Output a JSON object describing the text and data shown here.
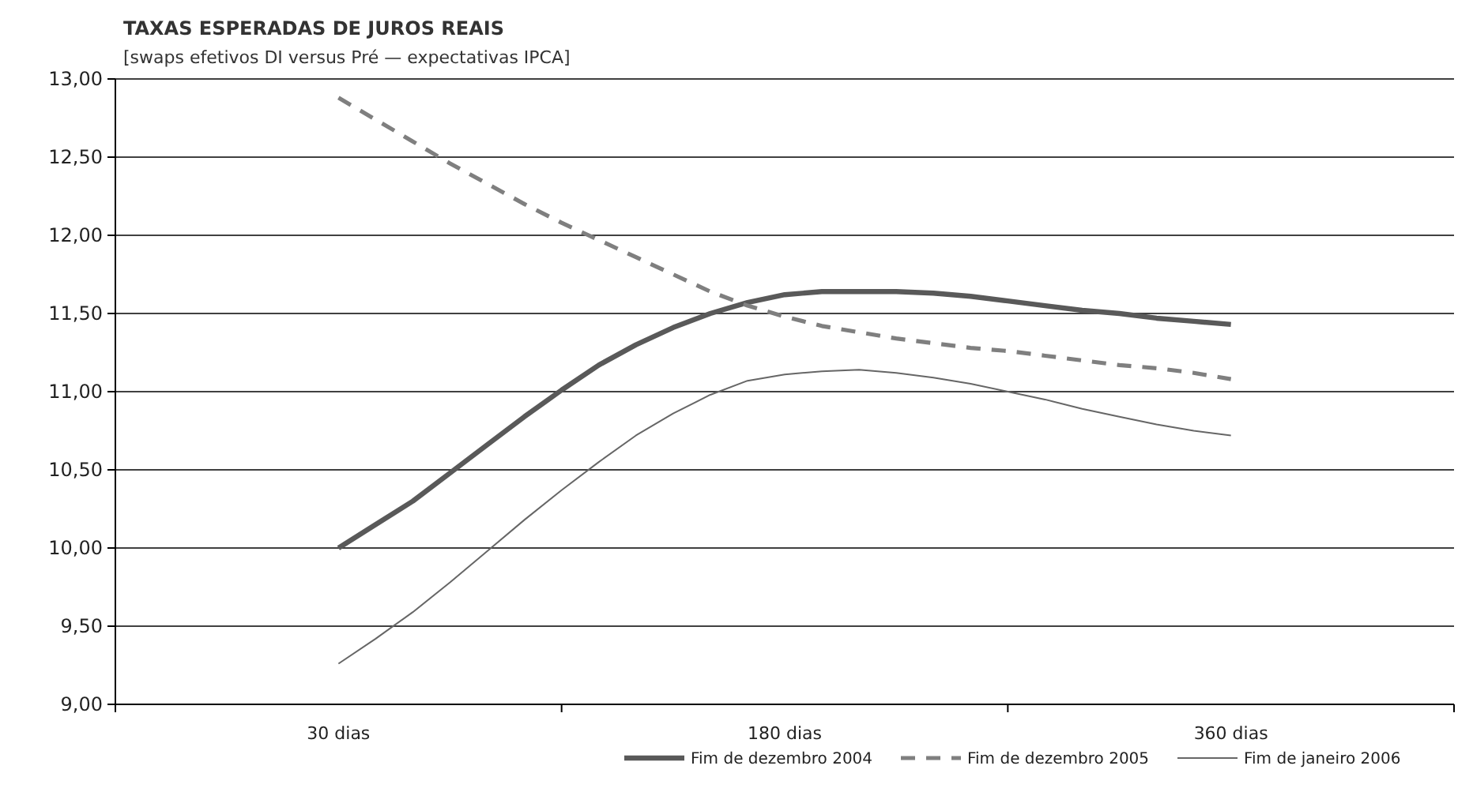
{
  "chart_data": {
    "type": "line",
    "title": "TAXAS ESPERADAS DE JUROS REAIS",
    "subtitle": "[swaps efetivos DI versus Pré — expectativas IPCA]",
    "categories": [
      "30 dias",
      null,
      null,
      null,
      null,
      null,
      null,
      null,
      null,
      null,
      null,
      null,
      "180 dias",
      null,
      null,
      null,
      null,
      null,
      null,
      null,
      null,
      null,
      null,
      null,
      "360 dias"
    ],
    "series": [
      {
        "name": "Fim de dezembro 2004",
        "color": "#595959",
        "line_style": "solid",
        "values": [
          10.0,
          10.15,
          10.3,
          10.48,
          10.66,
          10.84,
          11.01,
          11.17,
          11.3,
          11.41,
          11.5,
          11.57,
          11.62,
          11.64,
          11.64,
          11.64,
          11.63,
          11.61,
          11.58,
          11.55,
          11.52,
          11.5,
          11.47,
          11.45,
          11.43
        ]
      },
      {
        "name": "Fim de dezembro 2005",
        "color": "#7f7f7f",
        "line_style": "dashed",
        "values": [
          12.88,
          12.74,
          12.6,
          12.46,
          12.33,
          12.2,
          12.08,
          11.97,
          11.86,
          11.75,
          11.64,
          11.55,
          11.48,
          11.42,
          11.38,
          11.34,
          11.31,
          11.28,
          11.26,
          11.23,
          11.2,
          11.17,
          11.15,
          11.12,
          11.08
        ]
      },
      {
        "name": "Fim de janeiro 2006",
        "color": "#666666",
        "line_style": "solid",
        "values": [
          9.26,
          9.42,
          9.59,
          9.78,
          9.98,
          10.18,
          10.37,
          10.55,
          10.72,
          10.86,
          10.98,
          11.07,
          11.11,
          11.13,
          11.14,
          11.12,
          11.09,
          11.05,
          11.0,
          10.95,
          10.89,
          10.84,
          10.79,
          10.75,
          10.72
        ]
      }
    ],
    "ylim": [
      9,
      13
    ],
    "yticks": [
      {
        "value": 9,
        "label": "9,00"
      },
      {
        "value": 9.5,
        "label": "9,50"
      },
      {
        "value": 10,
        "label": "10,00"
      },
      {
        "value": 10.5,
        "label": "10,50"
      },
      {
        "value": 11,
        "label": "11,00"
      },
      {
        "value": 11.5,
        "label": "11,50"
      },
      {
        "value": 12,
        "label": "12,00"
      },
      {
        "value": 12.5,
        "label": "12,50"
      },
      {
        "value": 13,
        "label": "13,00"
      }
    ],
    "grid": "y",
    "legend": "bottom right",
    "marker": "none"
  }
}
